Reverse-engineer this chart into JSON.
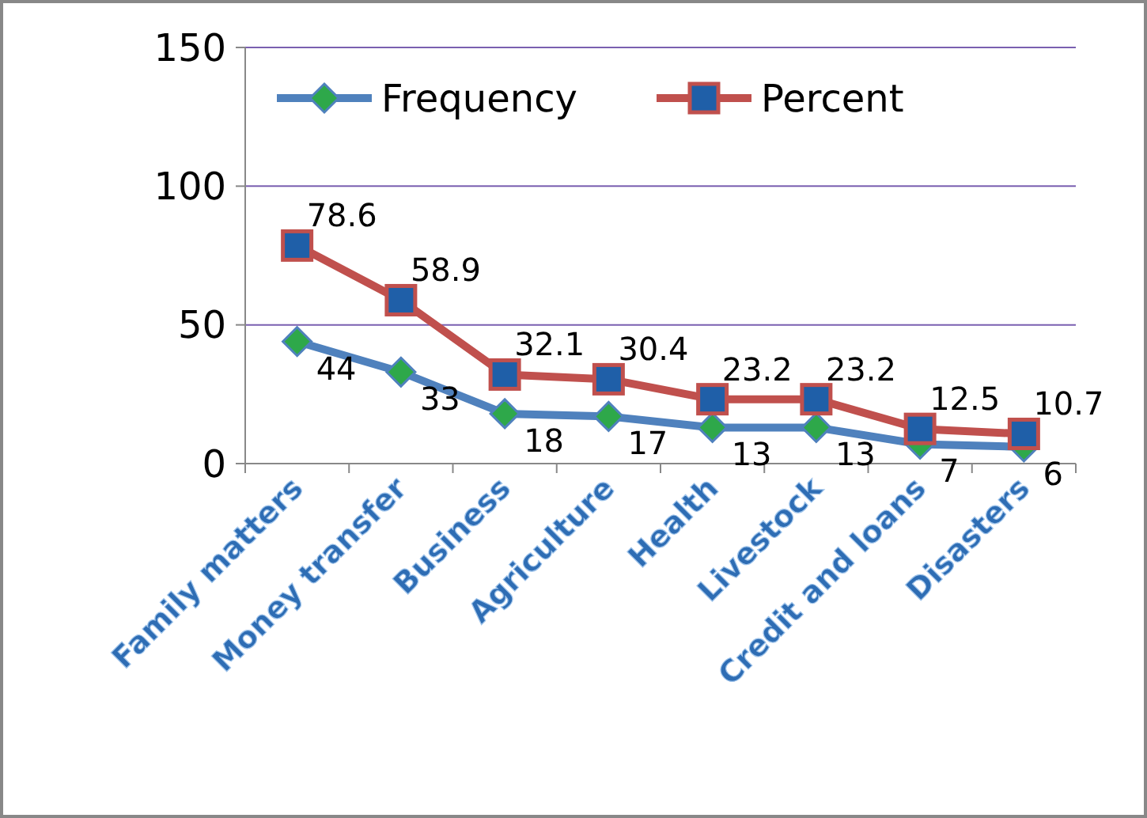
{
  "chart_data": {
    "type": "line",
    "categories": [
      "Family matters",
      "Money transfer",
      "Business",
      "Agriculture",
      "Health",
      "Livestock",
      "Credit and loans",
      "Disasters"
    ],
    "series": [
      {
        "name": "Frequency",
        "color": "#4f81bd",
        "marker": "diamond",
        "values": [
          44,
          33,
          18,
          17,
          13,
          13,
          7,
          6
        ]
      },
      {
        "name": "Percent",
        "color": "#c0504d",
        "marker": "square",
        "values": [
          78.6,
          58.9,
          32.1,
          30.4,
          23.2,
          23.2,
          12.5,
          10.7
        ]
      }
    ],
    "ylim": [
      0,
      150
    ],
    "yticks": [
      0,
      50,
      100,
      150
    ],
    "grid": "y",
    "legend": "top",
    "data_labels": true
  }
}
